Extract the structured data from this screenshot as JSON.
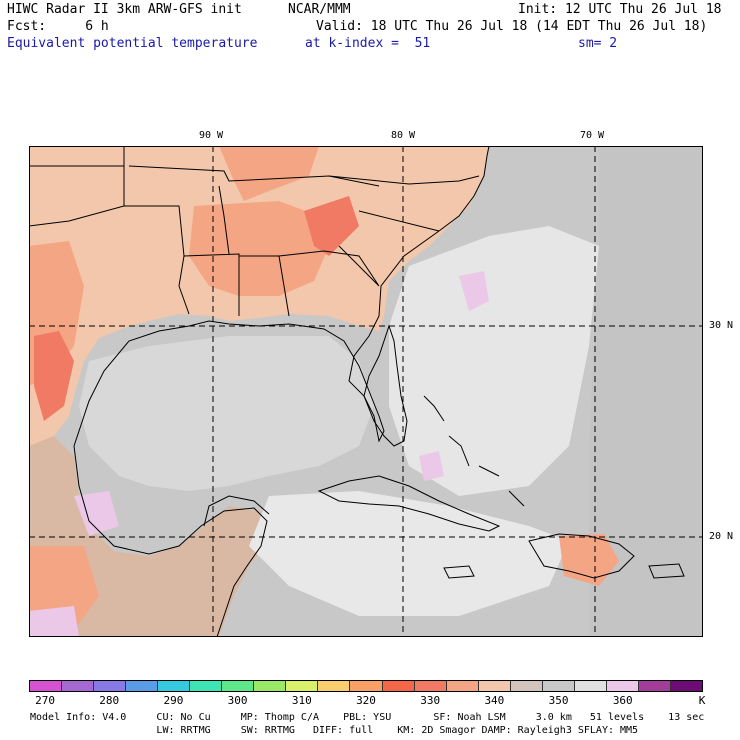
{
  "header": {
    "model": "HIWC Radar II 3km ARW-GFS init",
    "org": "NCAR/MMM",
    "init": "Init: 12 UTC Thu 26 Jul 18",
    "fcst": "Fcst:     6 h",
    "valid": "Valid: 18 UTC Thu 26 Jul 18 (14 EDT Thu 26 Jul 18)",
    "field": "Equivalent potential temperature",
    "level": "at k-index =  51",
    "smooth": "sm= 2"
  },
  "map": {
    "lon_labels": [
      "90 W",
      "80 W",
      "70 W"
    ],
    "lat_labels": [
      "30 N",
      "20 N"
    ]
  },
  "colorbar": {
    "colors": [
      "#d552d2",
      "#a56ad1",
      "#8779e6",
      "#5b9ce7",
      "#35c9e0",
      "#3de5b2",
      "#5ee88b",
      "#9be866",
      "#d8f06a",
      "#f8ce70",
      "#f8a065",
      "#f46849",
      "#f07a63",
      "#f4a584",
      "#f2c7ab",
      "#d2c3bd",
      "#c8c8c8",
      "#e0e0e0",
      "#ecc8e8",
      "#a43c9a",
      "#6c0c74"
    ],
    "ticks": [
      "270",
      "280",
      "290",
      "300",
      "310",
      "320",
      "330",
      "340",
      "350",
      "360"
    ],
    "unit": "K"
  },
  "model_info": {
    "line1": "Model Info: V4.0     CU: No Cu     MP: Thomp C/A    PBL: YSU       SF: Noah LSM     3.0 km   51 levels    13 sec",
    "line2": "                     LW: RRTMG     SW: RRTMG   DIFF: full    KM: 2D Smagor DAMP: Rayleigh3 SFLAY: MM5"
  }
}
